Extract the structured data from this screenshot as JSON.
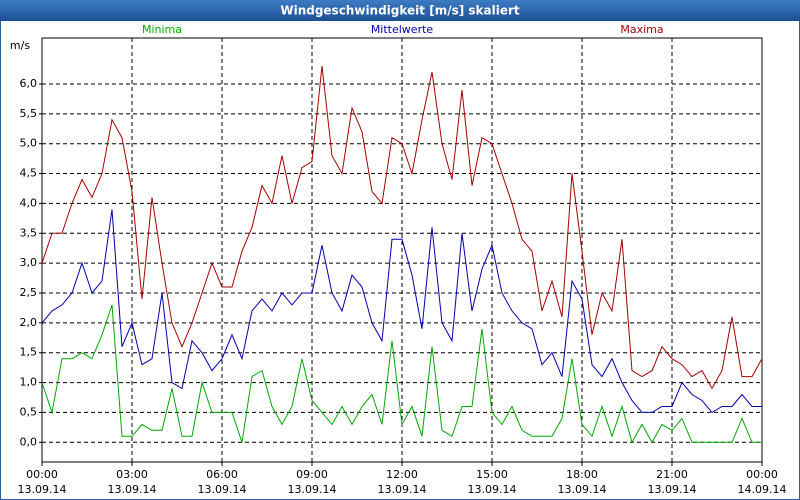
{
  "chart_data": {
    "type": "line",
    "title": "Windgeschwindigkeit [m/s] skaliert",
    "y_label": "m/s",
    "x": [
      0,
      20,
      40,
      60,
      80,
      100,
      120,
      140,
      160,
      180,
      200,
      220,
      240,
      260,
      280,
      300,
      320,
      340,
      360,
      380,
      400,
      420,
      440,
      460,
      480,
      500,
      520,
      540,
      560,
      580,
      600,
      620,
      640,
      660,
      680,
      700,
      720,
      740,
      760,
      780,
      800,
      820,
      840,
      860,
      880,
      900,
      920,
      940,
      960,
      980,
      1000,
      1020,
      1040,
      1060,
      1080,
      1100,
      1120,
      1140,
      1160,
      1180,
      1200,
      1220,
      1240,
      1260,
      1280,
      1300,
      1320,
      1340,
      1360,
      1380,
      1400,
      1420,
      1440
    ],
    "series": [
      {
        "name": "Minima",
        "color": "#00a800",
        "values": [
          1.0,
          0.5,
          1.4,
          1.4,
          1.5,
          1.4,
          1.8,
          2.3,
          0.1,
          0.1,
          0.3,
          0.2,
          0.2,
          0.9,
          0.1,
          0.1,
          1.0,
          0.5,
          0.5,
          0.5,
          0.0,
          1.1,
          1.2,
          0.6,
          0.3,
          0.6,
          1.4,
          0.7,
          0.5,
          0.3,
          0.6,
          0.3,
          0.6,
          0.8,
          0.3,
          1.7,
          0.3,
          0.6,
          0.1,
          1.6,
          0.2,
          0.1,
          0.6,
          0.6,
          1.9,
          0.5,
          0.3,
          0.6,
          0.2,
          0.1,
          0.1,
          0.1,
          0.4,
          1.4,
          0.3,
          0.1,
          0.6,
          0.1,
          0.6,
          0.0,
          0.3,
          0.0,
          0.3,
          0.2,
          0.4,
          0.0,
          0.0,
          0.0,
          0.0,
          0.0,
          0.4,
          0.0,
          0.0
        ]
      },
      {
        "name": "Mittelwerte",
        "color": "#0000b0",
        "values": [
          2.0,
          2.2,
          2.3,
          2.5,
          3.0,
          2.5,
          2.7,
          3.9,
          1.6,
          2.0,
          1.3,
          1.4,
          2.5,
          1.0,
          0.9,
          1.7,
          1.5,
          1.2,
          1.4,
          1.8,
          1.4,
          2.2,
          2.4,
          2.2,
          2.5,
          2.3,
          2.5,
          2.5,
          3.3,
          2.5,
          2.2,
          2.8,
          2.6,
          2.0,
          1.7,
          3.4,
          3.4,
          2.8,
          1.9,
          3.6,
          2.0,
          1.7,
          3.5,
          2.2,
          2.9,
          3.3,
          2.5,
          2.2,
          2.0,
          1.9,
          1.3,
          1.5,
          1.1,
          2.7,
          2.4,
          1.3,
          1.1,
          1.4,
          1.0,
          0.7,
          0.5,
          0.5,
          0.6,
          0.6,
          1.0,
          0.8,
          0.7,
          0.5,
          0.6,
          0.6,
          0.8,
          0.6,
          0.6
        ]
      },
      {
        "name": "Maxima",
        "color": "#a80000",
        "values": [
          3.0,
          3.5,
          3.5,
          4.0,
          4.4,
          4.1,
          4.5,
          5.4,
          5.1,
          4.2,
          2.4,
          4.1,
          3.0,
          2.0,
          1.6,
          2.0,
          2.5,
          3.0,
          2.6,
          2.6,
          3.2,
          3.6,
          4.3,
          4.0,
          4.8,
          4.0,
          4.6,
          4.7,
          6.3,
          4.8,
          4.5,
          5.6,
          5.2,
          4.2,
          4.0,
          5.1,
          5.0,
          4.5,
          5.4,
          6.2,
          5.0,
          4.4,
          5.9,
          4.3,
          5.1,
          5.0,
          4.5,
          4.0,
          3.4,
          3.2,
          2.2,
          2.7,
          2.1,
          4.5,
          3.2,
          1.8,
          2.5,
          2.2,
          3.4,
          1.2,
          1.1,
          1.2,
          1.6,
          1.4,
          1.3,
          1.1,
          1.2,
          0.9,
          1.2,
          2.1,
          1.1,
          1.1,
          1.4
        ]
      }
    ],
    "xlim": [
      0,
      1440
    ],
    "xticks": [
      {
        "value": 0,
        "label": "00:00",
        "date": "13.09.14"
      },
      {
        "value": 180,
        "label": "03:00",
        "date": "13.09.14"
      },
      {
        "value": 360,
        "label": "06:00",
        "date": "13.09.14"
      },
      {
        "value": 540,
        "label": "09:00",
        "date": "13.09.14"
      },
      {
        "value": 720,
        "label": "12:00",
        "date": "13.09.14"
      },
      {
        "value": 900,
        "label": "15:00",
        "date": "13.09.14"
      },
      {
        "value": 1080,
        "label": "18:00",
        "date": "13.09.14"
      },
      {
        "value": 1260,
        "label": "21:00",
        "date": "13.09.14"
      },
      {
        "value": 1440,
        "label": "00:00",
        "date": "14.09.14"
      }
    ],
    "ylim": [
      -0.33,
      6.77
    ],
    "yticks": [
      {
        "value": 0,
        "label": "0,0"
      },
      {
        "value": 0.5,
        "label": "0,5"
      },
      {
        "value": 1,
        "label": "1,0"
      },
      {
        "value": 1.5,
        "label": "1,5"
      },
      {
        "value": 2,
        "label": "2,0"
      },
      {
        "value": 2.5,
        "label": "2,5"
      },
      {
        "value": 3,
        "label": "3,0"
      },
      {
        "value": 3.5,
        "label": "3,5"
      },
      {
        "value": 4,
        "label": "4,0"
      },
      {
        "value": 4.5,
        "label": "4,5"
      },
      {
        "value": 5,
        "label": "5,0"
      },
      {
        "value": 5.5,
        "label": "5,5"
      },
      {
        "value": 6,
        "label": "6,0"
      }
    ],
    "grid": true
  }
}
